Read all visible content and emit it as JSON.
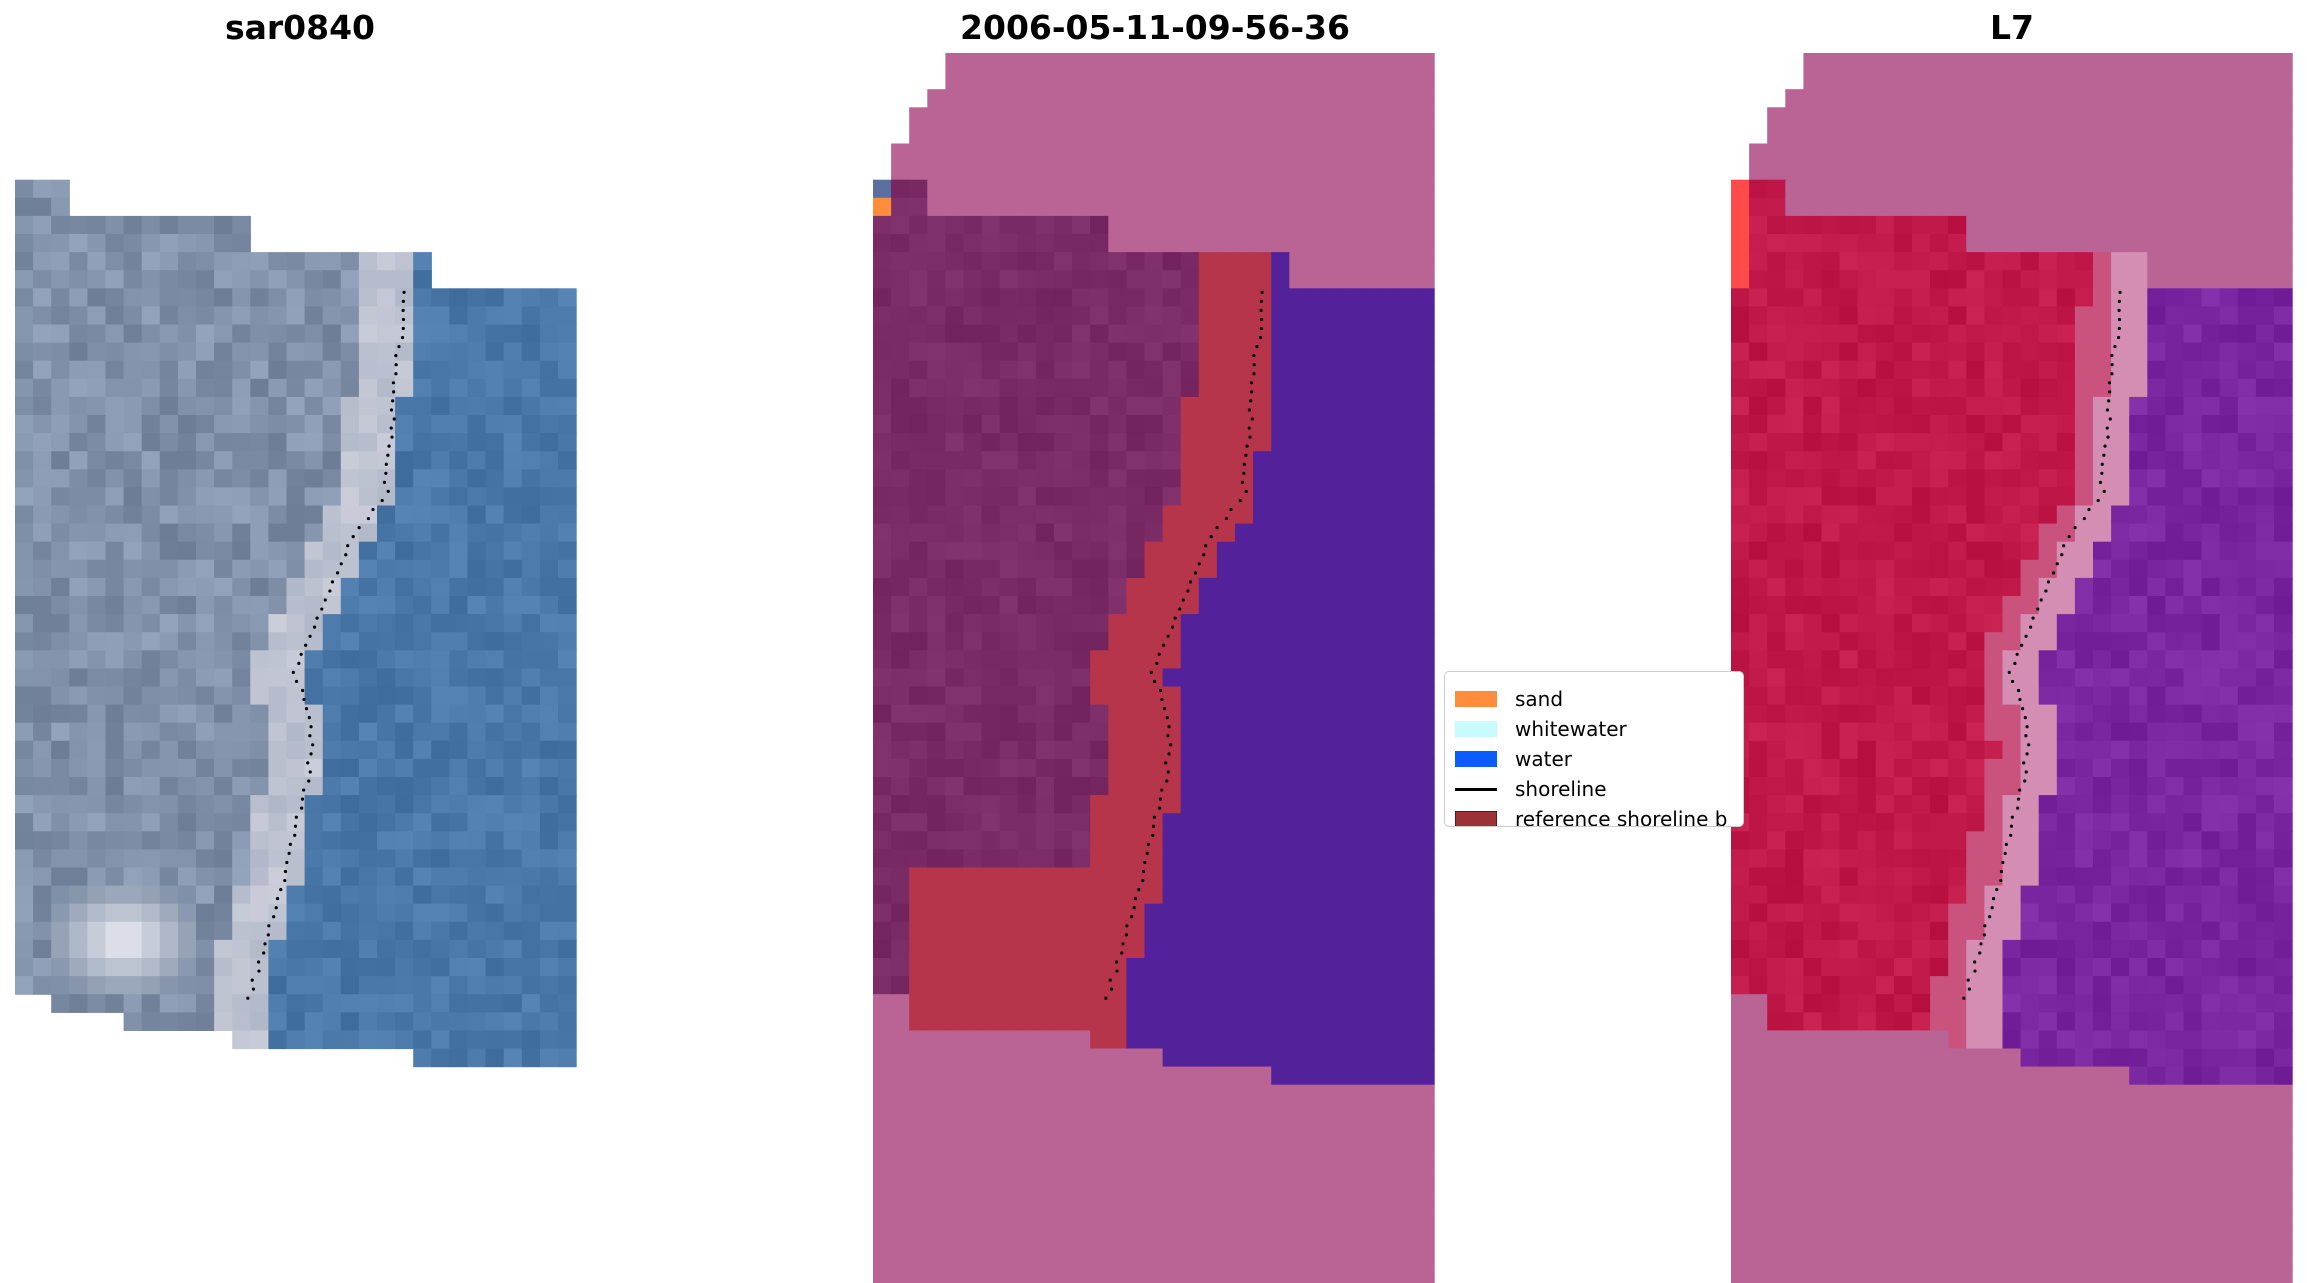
{
  "panels": [
    {
      "title": "sar0840"
    },
    {
      "title": "2006-05-11-09-56-36"
    },
    {
      "title": "L7"
    }
  ],
  "legend": {
    "items": [
      {
        "label": "sand",
        "color": "#ff8c3a"
      },
      {
        "label": "whitewater",
        "color": "#c8fcfc"
      },
      {
        "label": "water",
        "color": "#0a5cff"
      },
      {
        "label": "shoreline",
        "color": "#000000"
      },
      {
        "label": "reference shoreline b",
        "color": "#9b3238"
      }
    ]
  },
  "colors": {
    "no_data": "#ba6496",
    "land_class": "#7a2a64",
    "water_class": "#53229a",
    "buffer": "#b6354a",
    "rgb_land": "#8090a8",
    "rgb_water": "#4a78a8",
    "rgb_bright": "#f0f0f4",
    "index_land": "#c01848",
    "index_water": "#7a26a0",
    "index_transition": "#d48eb4"
  }
}
